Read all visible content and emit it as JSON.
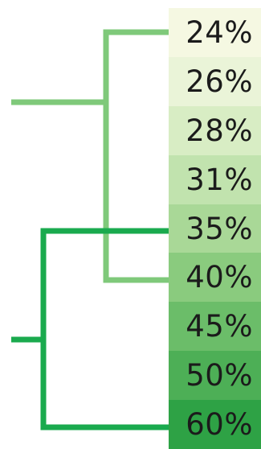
{
  "scale": {
    "items": [
      {
        "label": "24%",
        "color": "#f5f8e2"
      },
      {
        "label": "26%",
        "color": "#eaf4d8"
      },
      {
        "label": "28%",
        "color": "#d8edc4"
      },
      {
        "label": "31%",
        "color": "#c1e3ae"
      },
      {
        "label": "35%",
        "color": "#a9d897"
      },
      {
        "label": "40%",
        "color": "#8acb7e"
      },
      {
        "label": "45%",
        "color": "#6bbd69"
      },
      {
        "label": "50%",
        "color": "#4daf56"
      },
      {
        "label": "60%",
        "color": "#2ea245"
      }
    ]
  },
  "connectors": {
    "upper_color": "#7fc97a",
    "lower_color": "#1aaa4e"
  }
}
